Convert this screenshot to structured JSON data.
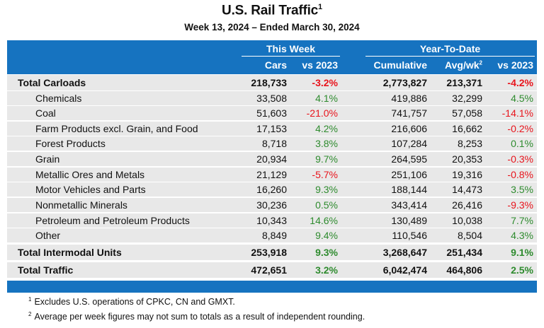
{
  "title": "U.S. Rail Traffic",
  "title_footnote_mark": "1",
  "subtitle": "Week 13, 2024 – Ended March 30, 2024",
  "header": {
    "this_week": "This Week",
    "ytd": "Year-To-Date",
    "cars": "Cars",
    "vs_week": "vs 2023",
    "cumulative": "Cumulative",
    "avg_wk": "Avg/wk",
    "avg_wk_mark": "2",
    "vs_ytd": "vs 2023"
  },
  "colors": {
    "header_blue": "#1673c0",
    "positive": "#2e8b2e",
    "negative": "#e8141c",
    "row_bg": "#e8e8e8"
  },
  "rows": [
    {
      "label": "Total Carloads",
      "bold": true,
      "cars": "218,733",
      "vs_week": "-3.2%",
      "cumulative": "2,773,827",
      "avg_wk": "213,371",
      "vs_ytd": "-4.2%"
    },
    {
      "label": "Chemicals",
      "bold": false,
      "cars": "33,508",
      "vs_week": "4.1%",
      "cumulative": "419,886",
      "avg_wk": "32,299",
      "vs_ytd": "4.5%"
    },
    {
      "label": "Coal",
      "bold": false,
      "cars": "51,603",
      "vs_week": "-21.0%",
      "cumulative": "741,757",
      "avg_wk": "57,058",
      "vs_ytd": "-14.1%"
    },
    {
      "label": "Farm Products excl. Grain, and Food",
      "bold": false,
      "cars": "17,153",
      "vs_week": "4.2%",
      "cumulative": "216,606",
      "avg_wk": "16,662",
      "vs_ytd": "-0.2%"
    },
    {
      "label": "Forest Products",
      "bold": false,
      "cars": "8,718",
      "vs_week": "3.8%",
      "cumulative": "107,284",
      "avg_wk": "8,253",
      "vs_ytd": "0.1%"
    },
    {
      "label": "Grain",
      "bold": false,
      "cars": "20,934",
      "vs_week": "9.7%",
      "cumulative": "264,595",
      "avg_wk": "20,353",
      "vs_ytd": "-0.3%"
    },
    {
      "label": "Metallic Ores and Metals",
      "bold": false,
      "cars": "21,129",
      "vs_week": "-5.7%",
      "cumulative": "251,106",
      "avg_wk": "19,316",
      "vs_ytd": "-0.8%"
    },
    {
      "label": "Motor Vehicles and Parts",
      "bold": false,
      "cars": "16,260",
      "vs_week": "9.3%",
      "cumulative": "188,144",
      "avg_wk": "14,473",
      "vs_ytd": "3.5%"
    },
    {
      "label": "Nonmetallic Minerals",
      "bold": false,
      "cars": "30,236",
      "vs_week": "0.5%",
      "cumulative": "343,414",
      "avg_wk": "26,416",
      "vs_ytd": "-9.3%"
    },
    {
      "label": "Petroleum and Petroleum Products",
      "bold": false,
      "cars": "10,343",
      "vs_week": "14.6%",
      "cumulative": "130,489",
      "avg_wk": "10,038",
      "vs_ytd": "7.7%"
    },
    {
      "label": "Other",
      "bold": false,
      "cars": "8,849",
      "vs_week": "9.4%",
      "cumulative": "110,546",
      "avg_wk": "8,504",
      "vs_ytd": "4.3%"
    },
    {
      "label": "Total Intermodal Units",
      "bold": true,
      "cars": "253,918",
      "vs_week": "9.3%",
      "cumulative": "3,268,647",
      "avg_wk": "251,434",
      "vs_ytd": "9.1%"
    },
    {
      "label": "Total Traffic",
      "bold": true,
      "cars": "472,651",
      "vs_week": "3.2%",
      "cumulative": "6,042,474",
      "avg_wk": "464,806",
      "vs_ytd": "2.5%"
    }
  ],
  "footnotes": [
    {
      "mark": "1",
      "text": "Excludes U.S. operations of CPKC, CN and GMXT."
    },
    {
      "mark": "2",
      "text": "Average per week figures may not sum to totals as a result of independent rounding."
    }
  ]
}
